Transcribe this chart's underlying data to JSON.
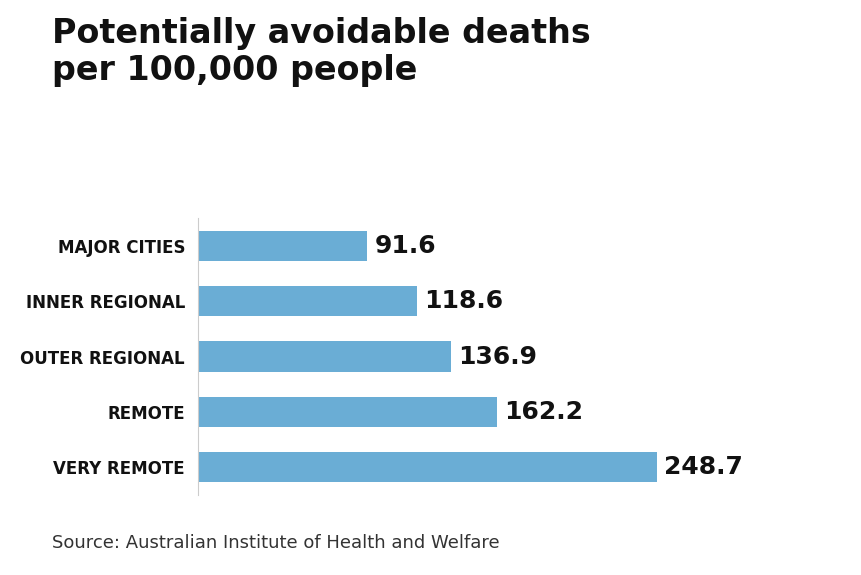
{
  "title": "Potentially avoidable deaths\nper 100,000 people",
  "categories": [
    "VERY REMOTE",
    "REMOTE",
    "OUTER REGIONAL",
    "INNER REGIONAL",
    "MAJOR CITIES"
  ],
  "values": [
    248.7,
    162.2,
    136.9,
    118.6,
    91.6
  ],
  "bar_color": "#6aadd5",
  "value_labels": [
    "248.7",
    "162.2",
    "136.9",
    "118.6",
    "91.6"
  ],
  "source_text": "Source: Australian Institute of Health and Welfare",
  "title_fontsize": 24,
  "label_fontsize": 12,
  "value_fontsize": 18,
  "source_fontsize": 13,
  "background_color": "#ffffff",
  "xlim": [
    0,
    290
  ]
}
